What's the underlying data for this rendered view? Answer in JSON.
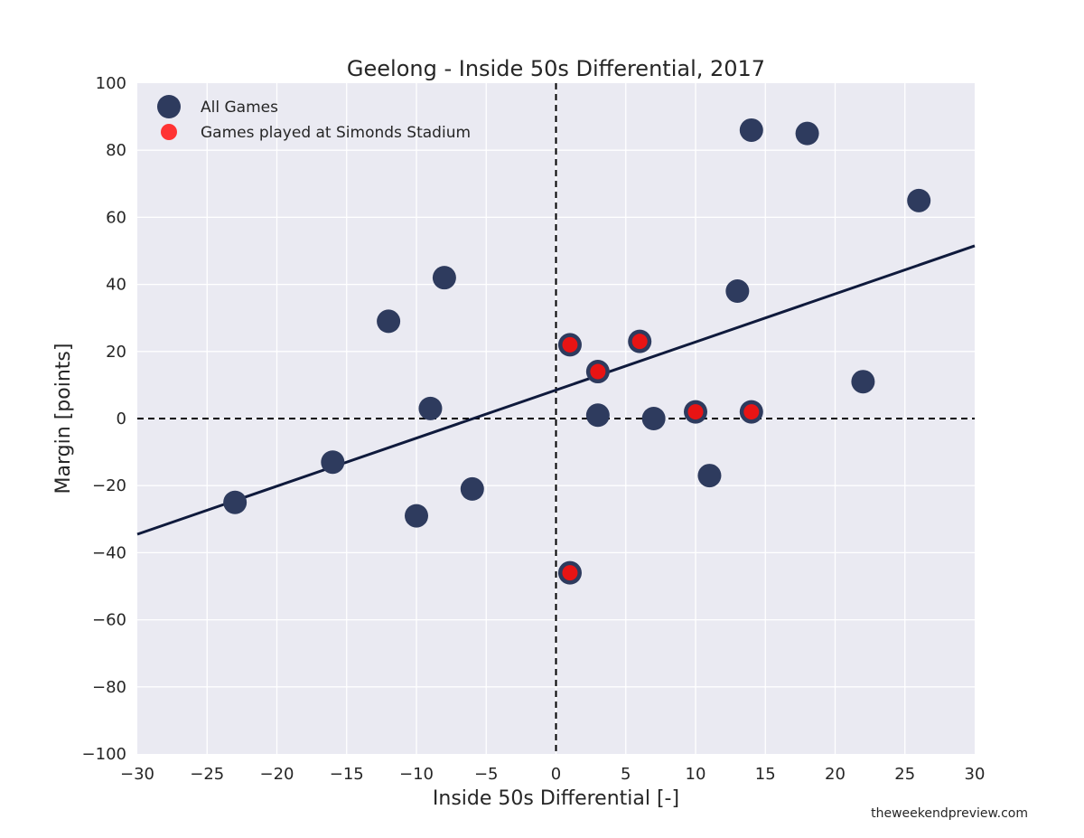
{
  "chart_data": {
    "type": "scatter",
    "title": "Geelong - Inside 50s Differential, 2017",
    "xlabel": "Inside 50s Differential [-]",
    "ylabel": "Margin [points]",
    "xlim": [
      -30,
      30
    ],
    "ylim": [
      -100,
      100
    ],
    "xticks": [
      -30,
      -25,
      -20,
      -15,
      -10,
      -5,
      0,
      5,
      10,
      15,
      20,
      25,
      30
    ],
    "yticks": [
      -100,
      -80,
      -60,
      -40,
      -20,
      0,
      20,
      40,
      60,
      80,
      100
    ],
    "xtick_labels": [
      "−30",
      "−25",
      "−20",
      "−15",
      "−10",
      "−5",
      "0",
      "5",
      "10",
      "15",
      "20",
      "25",
      "30"
    ],
    "ytick_labels": [
      "−100",
      "−80",
      "−60",
      "−40",
      "−20",
      "0",
      "20",
      "40",
      "60",
      "80",
      "100"
    ],
    "grid": true,
    "legend_position": "top-left",
    "series": [
      {
        "name": "All Games",
        "color": "#2e3b5e",
        "points": [
          {
            "x": -23,
            "y": -25
          },
          {
            "x": -16,
            "y": -13
          },
          {
            "x": -12,
            "y": 29
          },
          {
            "x": -10,
            "y": -29
          },
          {
            "x": -9,
            "y": 3
          },
          {
            "x": -8,
            "y": 42
          },
          {
            "x": -6,
            "y": -21
          },
          {
            "x": 1,
            "y": 22
          },
          {
            "x": 1,
            "y": -46
          },
          {
            "x": 3,
            "y": 14
          },
          {
            "x": 3,
            "y": 1
          },
          {
            "x": 6,
            "y": 23
          },
          {
            "x": 7,
            "y": 0
          },
          {
            "x": 10,
            "y": 2
          },
          {
            "x": 11,
            "y": -17
          },
          {
            "x": 13,
            "y": 38
          },
          {
            "x": 14,
            "y": 86
          },
          {
            "x": 14,
            "y": 2
          },
          {
            "x": 18,
            "y": 85
          },
          {
            "x": 22,
            "y": 11
          },
          {
            "x": 26,
            "y": 65
          }
        ]
      },
      {
        "name": "Games played at Simonds Stadium",
        "color": "#e81414",
        "points": [
          {
            "x": 1,
            "y": 22
          },
          {
            "x": 1,
            "y": -46
          },
          {
            "x": 3,
            "y": 14
          },
          {
            "x": 6,
            "y": 23
          },
          {
            "x": 10,
            "y": 2
          },
          {
            "x": 14,
            "y": 2
          }
        ]
      }
    ],
    "trendline": {
      "x": [
        -30,
        30
      ],
      "y": [
        -34.5,
        51.5
      ],
      "color": "#0f1a3c"
    },
    "reference_lines": {
      "x": 0,
      "y": 0,
      "style": "dashed",
      "color": "#000000"
    },
    "plot_background": "#eaeaf2"
  },
  "credit": "theweekendpreview.com"
}
